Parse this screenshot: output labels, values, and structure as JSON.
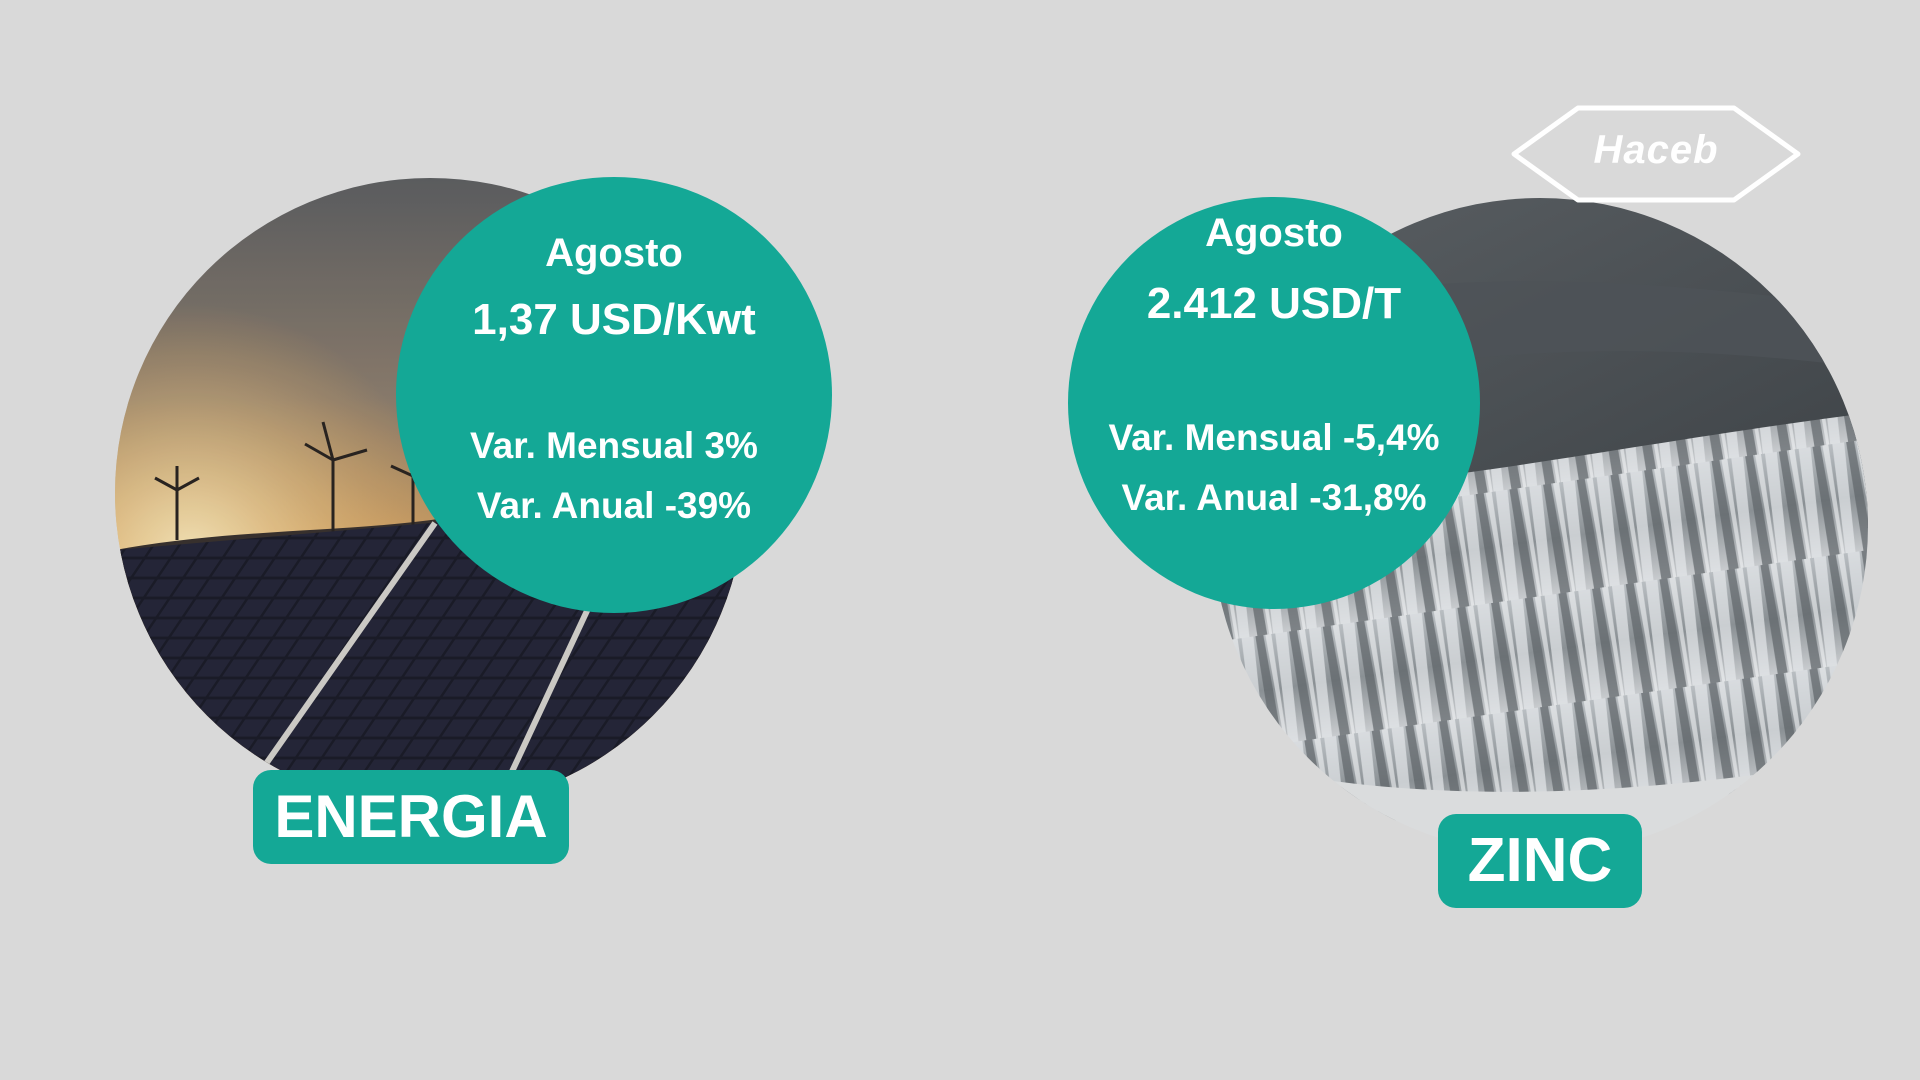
{
  "energy": {
    "month": "Agosto",
    "price": "1,37 USD/Kwt",
    "monthly_variation": "Var. Mensual 3%",
    "annual_variation": "Var. Anual -39%",
    "label": "ENERGIA"
  },
  "zinc": {
    "month": "Agosto",
    "price": "2.412 USD/T",
    "monthly_variation": "Var. Mensual -5,4%",
    "annual_variation": "Var. Anual -31,8%",
    "label": "ZINC"
  },
  "logo": {
    "text": "Haceb"
  },
  "colors": {
    "background": "#d9d9d9",
    "accent": "#14a896",
    "text_on_accent": "#ffffff"
  }
}
